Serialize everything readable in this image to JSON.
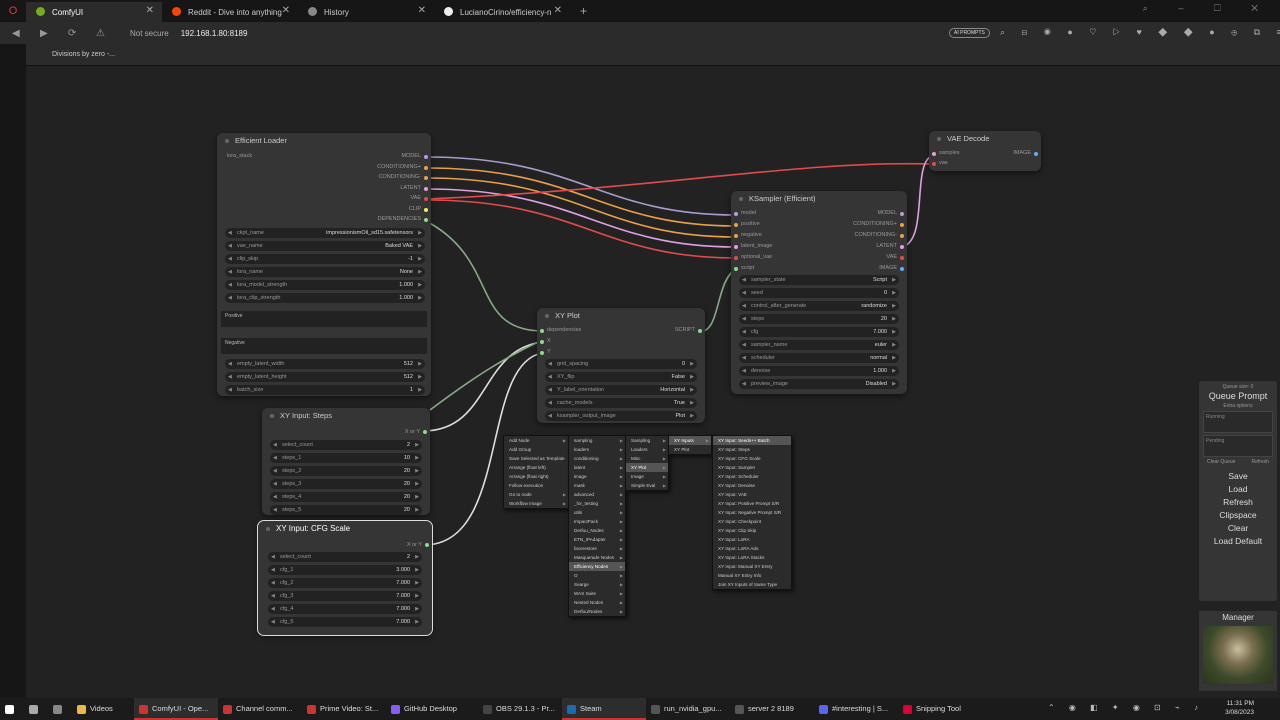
{
  "browser": {
    "tabs": [
      {
        "title": "ComfyUI",
        "active": true,
        "favicon_color": "#7a2",
        "closable": true
      },
      {
        "title": "Reddit - Dive into anything",
        "active": false,
        "favicon_color": "#f40",
        "closable": true
      },
      {
        "title": "History",
        "active": false,
        "favicon_color": "#888",
        "closable": true
      },
      {
        "title": "LucianoCirino/efficiency-n",
        "active": false,
        "favicon_color": "#eee",
        "closable": true
      }
    ],
    "secure_label": "Not secure",
    "url": "192.168.1.80:8189",
    "ai_prompts_label": "AI PROMPTS",
    "bookmark": "Divisions by zero -..."
  },
  "nodes": {
    "efficient_loader": {
      "title": "Efficient Loader",
      "input": "lora_stack",
      "outputs": [
        "MODEL",
        "CONDITIONING+",
        "CONDITIONING-",
        "LATENT",
        "VAE",
        "CLIP",
        "DEPENDENCIES"
      ],
      "widgets": [
        {
          "label": "ckpt_name",
          "value": "impressionismOil_sd15.safetensors"
        },
        {
          "label": "vae_name",
          "value": "Baked VAE"
        },
        {
          "label": "clip_skip",
          "value": "-1"
        },
        {
          "label": "lora_name",
          "value": "None"
        },
        {
          "label": "lora_model_strength",
          "value": "1.000"
        },
        {
          "label": "lora_clip_strength",
          "value": "1.000"
        }
      ],
      "positive_label": "Positive",
      "negative_label": "Negative",
      "latent_widgets": [
        {
          "label": "empty_latent_width",
          "value": "512"
        },
        {
          "label": "empty_latent_height",
          "value": "512"
        },
        {
          "label": "batch_size",
          "value": "1"
        }
      ]
    },
    "vae_decode": {
      "title": "VAE Decode",
      "inputs": [
        "samples",
        "vae"
      ],
      "output": "IMAGE"
    },
    "ksampler": {
      "title": "KSampler (Efficient)",
      "inputs": [
        "model",
        "positive",
        "negative",
        "latent_image",
        "optional_vae",
        "script"
      ],
      "outputs": [
        "MODEL",
        "CONDITIONING+",
        "CONDITIONING-",
        "LATENT",
        "VAE",
        "IMAGE"
      ],
      "widgets": [
        {
          "label": "sampler_state",
          "value": "Script"
        },
        {
          "label": "seed",
          "value": "0"
        },
        {
          "label": "control_after_generate",
          "value": "randomize"
        },
        {
          "label": "steps",
          "value": "20"
        },
        {
          "label": "cfg",
          "value": "7.000"
        },
        {
          "label": "sampler_name",
          "value": "euler"
        },
        {
          "label": "scheduler",
          "value": "normal"
        },
        {
          "label": "denoise",
          "value": "1.000"
        },
        {
          "label": "preview_image",
          "value": "Disabled"
        }
      ]
    },
    "xy_plot": {
      "title": "XY Plot",
      "inputs": [
        "dependencies",
        "X",
        "Y"
      ],
      "output": "SCRIPT",
      "widgets": [
        {
          "label": "grid_spacing",
          "value": "0"
        },
        {
          "label": "XY_flip",
          "value": "False"
        },
        {
          "label": "Y_label_orientation",
          "value": "Horizontal"
        },
        {
          "label": "cache_models",
          "value": "True"
        },
        {
          "label": "ksampler_output_image",
          "value": "Plot"
        }
      ]
    },
    "xy_steps": {
      "title": "XY Input: Steps",
      "output": "X or Y",
      "widgets": [
        {
          "label": "select_count",
          "value": "2"
        },
        {
          "label": "steps_1",
          "value": "10"
        },
        {
          "label": "steps_2",
          "value": "20"
        },
        {
          "label": "steps_3",
          "value": "20"
        },
        {
          "label": "steps_4",
          "value": "20"
        },
        {
          "label": "steps_5",
          "value": "20"
        }
      ]
    },
    "xy_cfg": {
      "title": "XY Input: CFG Scale",
      "output": "X or Y",
      "widgets": [
        {
          "label": "select_count",
          "value": "2"
        },
        {
          "label": "cfg_1",
          "value": "3.000"
        },
        {
          "label": "cfg_2",
          "value": "7.000"
        },
        {
          "label": "cfg_3",
          "value": "7.000"
        },
        {
          "label": "cfg_4",
          "value": "7.000"
        },
        {
          "label": "cfg_5",
          "value": "7.000"
        }
      ]
    }
  },
  "context_menu": {
    "main": [
      {
        "label": "Add Node",
        "sub": true
      },
      {
        "label": "Add Group",
        "sub": false
      },
      {
        "label": "Save Selected as Template",
        "sub": false
      },
      {
        "label": "Arrange (float left)",
        "sub": false
      },
      {
        "label": "Arrange (float right)",
        "sub": false
      },
      {
        "label": "Follow execution",
        "sub": false
      },
      {
        "label": "Go to node",
        "sub": true
      },
      {
        "label": "Workflow Image",
        "sub": true
      }
    ],
    "categories": [
      "sampling",
      "loaders",
      "conditioning",
      "latent",
      "image",
      "mask",
      "advanced",
      "_for_testing",
      "utils",
      "ImpactPack",
      "Derfuu_Nodes",
      "ETN_IPAdapter",
      "facerestore",
      "Masquerade Nodes",
      "Efficiency Nodes",
      "O",
      "Searge",
      "WAS Suite",
      "Nested Nodes",
      "Derfuu/Nodes"
    ],
    "efficiency": [
      "Sampling",
      "Loaders",
      "Misc",
      "XY Plot",
      "Image",
      "Simple Eval"
    ],
    "xy_plot": [
      "XY Inputs",
      "XY Plot"
    ],
    "xy_inputs": [
      "XY Input: Seeds++ Batch",
      "XY Input: Steps",
      "XY Input: CFG Scale",
      "XY Input: Sampler",
      "XY Input: Scheduler",
      "XY Input: Denoise",
      "XY Input: VAE",
      "XY Input: Positive Prompt S/R",
      "XY Input: Negative Prompt S/R",
      "XY Input: Checkpoint",
      "XY Input: Clip Skip",
      "XY Input: LoRA",
      "XY Input: LoRA Adv.",
      "XY Input: LoRA Stacks",
      "XY Input: Manual XY Entry",
      "Manual XY Entry Info",
      "Join XY Inputs of Same Type"
    ]
  },
  "queue_panel": {
    "queue_size": "Queue size: 0",
    "queue_prompt": "Queue Prompt",
    "extra_options": "Extra options",
    "running": "Running",
    "pending": "Pending",
    "clear_queue": "Clear Queue",
    "refresh_small": "Refresh",
    "buttons": [
      "Save",
      "Load",
      "Refresh",
      "Clipspace",
      "Clear",
      "Load Default"
    ],
    "manager": "Manager"
  },
  "taskbar": {
    "items": [
      {
        "label": "Videos",
        "color": "#e8b84a"
      },
      {
        "label": "ComfyUI - Ope...",
        "color": "#c33",
        "active": true
      },
      {
        "label": "Channel comm...",
        "color": "#c33"
      },
      {
        "label": "Prime Video: St...",
        "color": "#c33"
      },
      {
        "label": "GitHub Desktop",
        "color": "#8a5cf5"
      },
      {
        "label": "OBS 29.1.3 - Pr...",
        "color": "#444"
      },
      {
        "label": "Steam",
        "color": "#1b6bb0",
        "active": true
      },
      {
        "label": "run_nvidia_gpu...",
        "color": "#555"
      },
      {
        "label": "server 2 8189",
        "color": "#555"
      },
      {
        "label": "#interesting | S...",
        "color": "#5865f2"
      },
      {
        "label": "Snipping Tool",
        "color": "#d03"
      }
    ],
    "time": "11:31 PM",
    "date": "3/08/2023"
  }
}
